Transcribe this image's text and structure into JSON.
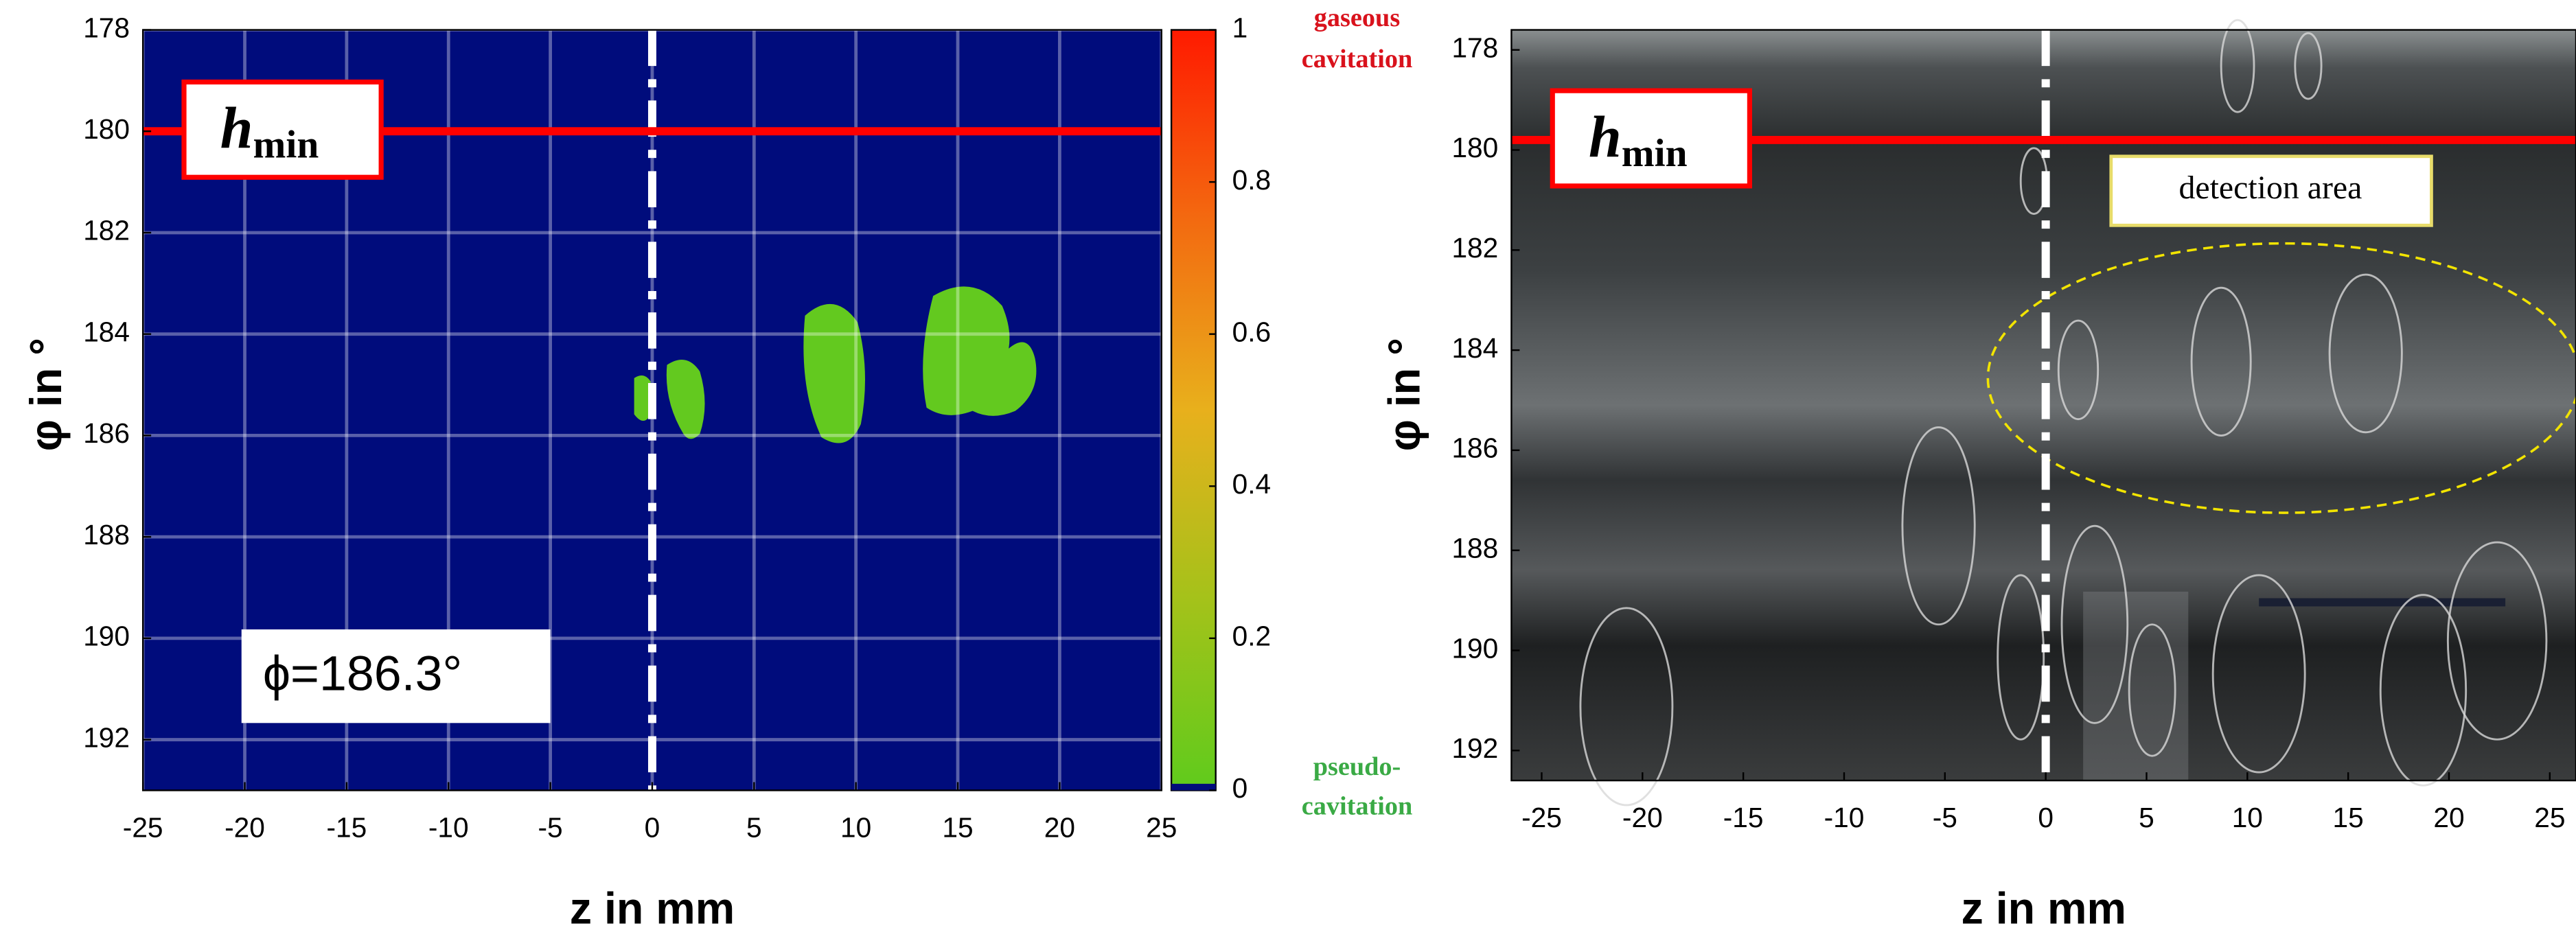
{
  "chart_data": [
    {
      "type": "heatmap",
      "xlabel": "z in mm",
      "ylabel": "φ in °",
      "xlim": [
        -25,
        25
      ],
      "xticks": [
        -25,
        -20,
        -15,
        -10,
        -5,
        0,
        5,
        10,
        15,
        20,
        25
      ],
      "ylim": [
        178,
        193
      ],
      "yticks": [
        178,
        180,
        182,
        184,
        186,
        188,
        190,
        192
      ],
      "y_reversed": true,
      "grid": true,
      "background": "#000c7c",
      "region_color": "#63c91f",
      "hline": {
        "value": 180,
        "label": "h",
        "sublabel": "min",
        "color": "#ff0000"
      },
      "vline": 0,
      "annotation": "ϕ=186.3°",
      "colorbar": {
        "lim": [
          0,
          1
        ],
        "ticks": [
          0,
          0.2,
          0.4,
          0.6,
          0.8,
          1
        ],
        "colors": [
          "#5fcb1c",
          "#a4c21a",
          "#e8b01c",
          "#f36a10",
          "#ff1a00"
        ],
        "top_label": [
          "gaseous",
          "cavitation"
        ],
        "top_color": "#d9121c",
        "bottom_label": [
          "pseudo-",
          "cavitation"
        ],
        "bottom_color": "#3aaa45"
      }
    },
    {
      "type": "image",
      "xlabel": "z in mm",
      "ylabel": "φ in °",
      "xlim": [
        -26.5,
        26.3
      ],
      "xticks": [
        -25,
        -20,
        -15,
        -10,
        -5,
        0,
        5,
        10,
        15,
        20,
        25
      ],
      "ylim": [
        177.6,
        192.6
      ],
      "yticks": [
        178,
        180,
        182,
        184,
        186,
        188,
        190,
        192
      ],
      "y_reversed": true,
      "grid": false,
      "hline": {
        "value": 179.8,
        "label": "h",
        "sublabel": "min",
        "color": "#ff0000"
      },
      "vline": 0,
      "annotation": "detection area"
    }
  ]
}
